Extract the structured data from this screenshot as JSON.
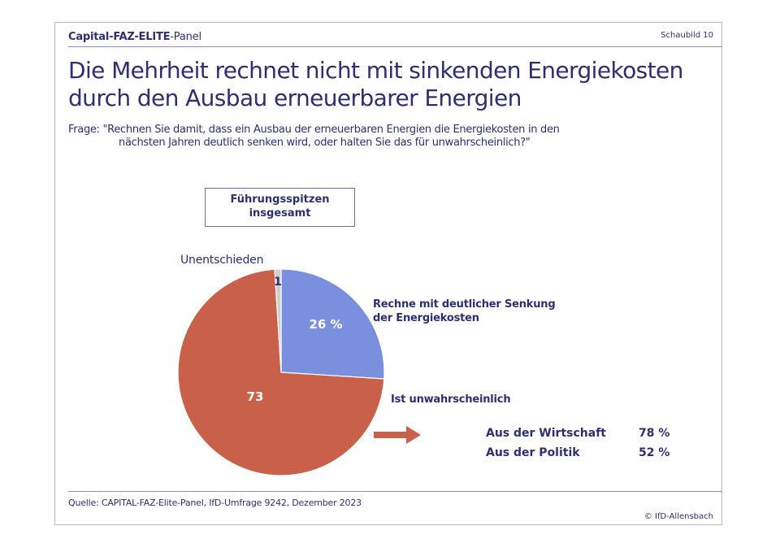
{
  "header": {
    "brand_part1": "Capital-FAZ-ELITE",
    "brand_part2": "-Panel",
    "figure_number": "Schaubild  10"
  },
  "title_line1": "Die Mehrheit rechnet nicht mit sinkenden Energiekosten",
  "title_line2": "durch den Ausbau erneuerbarer Energien",
  "question_line1": "Frage: \"Rechnen Sie damit, dass ein Ausbau der erneuerbaren Energien die Energiekosten in den",
  "question_line2": "nächsten Jahren deutlich senken wird, oder halten Sie das für unwahrscheinlich?\"",
  "group_label_line1": "Führungsspitzen",
  "group_label_line2": "insgesamt",
  "chart_data": {
    "type": "pie",
    "title": "Führungsspitzen insgesamt",
    "unit": "%",
    "slices": [
      {
        "label": "Rechne mit deutlicher Senkung der Energiekosten",
        "label_line1": "Rechne mit deutlicher Senkung",
        "label_line2": "der Energiekosten",
        "value": 26,
        "value_label": "26 %",
        "color": "#7b8fdf"
      },
      {
        "label": "Ist unwahrscheinlich",
        "label_line1": "Ist unwahrscheinlich",
        "label_line2": "",
        "value": 73,
        "value_label": "73",
        "color": "#c8604a"
      },
      {
        "label": "Unentschieden",
        "label_line1": "Unentschieden",
        "label_line2": "",
        "value": 1,
        "value_label": "1",
        "color": "#cfcfcf"
      }
    ],
    "start_angle": "12 o'clock",
    "direction": "clockwise",
    "breakdown": {
      "of_slice": "Ist unwahrscheinlich",
      "rows": [
        {
          "label": "Aus der Wirtschaft",
          "value": 78,
          "value_label": "78 %"
        },
        {
          "label": "Aus der Politik",
          "value": 52,
          "value_label": "52 %"
        }
      ]
    }
  },
  "footer": {
    "source": "Quelle: CAPITAL-FAZ-Elite-Panel, IfD-Umfrage 9242, Dezember 2023",
    "copyright": "© IfD-Allensbach"
  },
  "colors": {
    "text": "#2e2f73",
    "rule": "#8b8cc0",
    "arrow": "#c8604a"
  }
}
